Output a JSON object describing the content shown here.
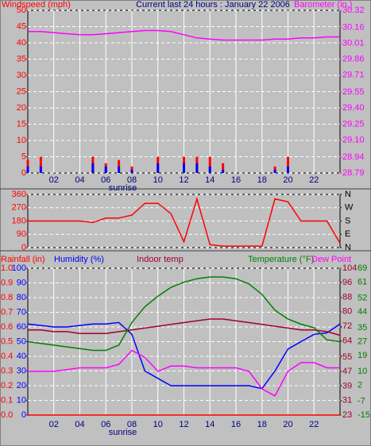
{
  "chart_data": [
    {
      "type": "combo",
      "title": "Current last 24 hours : January 22 2006",
      "ylabel": "Windspeed (mph)",
      "y2label": "Barometer (in.)",
      "x": [
        0,
        1,
        2,
        3,
        4,
        5,
        6,
        7,
        8,
        9,
        10,
        11,
        12,
        13,
        14,
        15,
        16,
        17,
        18,
        19,
        20,
        21,
        22,
        23,
        24
      ],
      "xlim": [
        0,
        24
      ],
      "xticks": [
        {
          "value": 2,
          "label": "02"
        },
        {
          "value": 4,
          "label": "04"
        },
        {
          "value": 6,
          "label": "06"
        },
        {
          "value": 8,
          "label": "08"
        },
        {
          "value": 10,
          "label": "10"
        },
        {
          "value": 12,
          "label": "12"
        },
        {
          "value": 14,
          "label": "14"
        },
        {
          "value": 16,
          "label": "16"
        },
        {
          "value": 18,
          "label": "18"
        },
        {
          "value": 20,
          "label": "20"
        },
        {
          "value": 22,
          "label": "22"
        }
      ],
      "ylim": [
        0,
        50
      ],
      "yticks": [
        0,
        5,
        10,
        15,
        20,
        25,
        30,
        35,
        40,
        45,
        50
      ],
      "y2lim": [
        28.79,
        30.32
      ],
      "y2ticks": [
        28.79,
        28.94,
        {
          "value": 29.1,
          "label": "29.10"
        },
        29.25,
        {
          "value": 29.4,
          "label": "29.40"
        },
        29.55,
        29.71,
        29.86,
        30.01,
        30.16,
        30.32
      ],
      "grid": true,
      "annotations": [
        {
          "text": "sunrise",
          "x": 7.3
        }
      ],
      "series": [
        {
          "type": "bar",
          "color": "#ff0000",
          "values": [
            4,
            5,
            0,
            0,
            0,
            5,
            3,
            4,
            2,
            0,
            5,
            0,
            5,
            5,
            5,
            3,
            0,
            0,
            0,
            2,
            5,
            0,
            0,
            0,
            0
          ]
        },
        {
          "type": "bar",
          "color": "#0000ff",
          "values": [
            2,
            2,
            0,
            0,
            0,
            3,
            2,
            2,
            1,
            0,
            3,
            0,
            3,
            3,
            2,
            1,
            0,
            0,
            0,
            1,
            2,
            0,
            0,
            0,
            0
          ]
        },
        {
          "type": "line",
          "axis": "y2",
          "color": "#ff00ff",
          "values": [
            30.12,
            30.12,
            30.11,
            30.1,
            30.09,
            30.09,
            30.1,
            30.11,
            30.12,
            30.13,
            30.13,
            30.12,
            30.09,
            30.06,
            30.05,
            30.04,
            30.04,
            30.04,
            30.04,
            30.05,
            30.05,
            30.06,
            30.06,
            30.07,
            30.07
          ]
        }
      ]
    },
    {
      "type": "combo",
      "x": [
        0,
        1,
        2,
        3,
        4,
        5,
        6,
        7,
        8,
        9,
        10,
        11,
        12,
        13,
        14,
        15,
        16,
        17,
        18,
        19,
        20,
        21,
        22,
        23,
        24
      ],
      "xlim": [
        0,
        24
      ],
      "ylim": [
        0,
        360
      ],
      "yticks": [
        0,
        90,
        180,
        270,
        360
      ],
      "y2lim": [
        0,
        360
      ],
      "y2ticks": [
        {
          "value": 0,
          "label": "N"
        },
        {
          "value": 90,
          "label": "E"
        },
        {
          "value": 180,
          "label": "S"
        },
        {
          "value": 270,
          "label": "W"
        },
        {
          "value": 360,
          "label": "N"
        }
      ],
      "grid": true,
      "series": [
        {
          "type": "line",
          "color": "#ff0000",
          "values": [
            180,
            180,
            180,
            180,
            180,
            170,
            200,
            200,
            220,
            300,
            300,
            230,
            40,
            330,
            20,
            10,
            10,
            10,
            10,
            330,
            310,
            180,
            180,
            180,
            30
          ]
        }
      ]
    },
    {
      "type": "combo",
      "x": [
        0,
        1,
        2,
        3,
        4,
        5,
        6,
        7,
        8,
        9,
        10,
        11,
        12,
        13,
        14,
        15,
        16,
        17,
        18,
        19,
        20,
        21,
        22,
        23,
        24
      ],
      "xlim": [
        0,
        24
      ],
      "xticks": [
        {
          "value": 2,
          "label": "02"
        },
        {
          "value": 4,
          "label": "04"
        },
        {
          "value": 6,
          "label": "06"
        },
        {
          "value": 8,
          "label": "08"
        },
        {
          "value": 10,
          "label": "10"
        },
        {
          "value": 12,
          "label": "12"
        },
        {
          "value": 14,
          "label": "14"
        },
        {
          "value": 16,
          "label": "16"
        },
        {
          "value": 18,
          "label": "18"
        },
        {
          "value": 20,
          "label": "20"
        },
        {
          "value": 22,
          "label": "22"
        }
      ],
      "ylim": [
        0,
        100
      ],
      "yticks": [
        0,
        10,
        20,
        30,
        40,
        50,
        60,
        70,
        80,
        90,
        100
      ],
      "y2lim": [
        23,
        104
      ],
      "y2ticks": [
        23,
        31,
        39,
        47,
        55,
        64,
        72,
        80,
        88,
        96,
        104
      ],
      "y3lim": [
        -15,
        69
      ],
      "y3ticks": [
        -15,
        -7,
        2,
        10,
        19,
        27,
        35,
        44,
        52,
        61,
        69
      ],
      "y4lim": [
        0,
        1
      ],
      "y4ticks": [
        {
          "value": 0,
          "label": "0.0"
        },
        0.1,
        0.2,
        0.3,
        0.4,
        0.5,
        0.6,
        0.7,
        0.8,
        0.9,
        {
          "value": 1,
          "label": "1.0"
        }
      ],
      "grid": true,
      "annotations": [
        {
          "text": "sunrise",
          "x": 7.3
        }
      ],
      "series": [
        {
          "name": "Rainfall (in)",
          "type": "line",
          "axis": "y4",
          "color": "#ff0000",
          "values": [
            0,
            0,
            0,
            0,
            0,
            0,
            0,
            0,
            0,
            0,
            0,
            0,
            0,
            0,
            0,
            0,
            0,
            0,
            0,
            0,
            0,
            0,
            0,
            0,
            0
          ]
        },
        {
          "name": "Humidity (%)",
          "type": "line",
          "color": "#0000ff",
          "values": [
            62,
            61,
            60,
            60,
            61,
            62,
            62,
            63,
            55,
            30,
            25,
            20,
            20,
            20,
            20,
            20,
            20,
            20,
            18,
            30,
            45,
            50,
            55,
            56,
            62
          ]
        },
        {
          "name": "Indoor temp",
          "type": "line",
          "axis": "y2",
          "color": "#a00030",
          "values": [
            70,
            70,
            69,
            69,
            68,
            68,
            68,
            69,
            70,
            71,
            72,
            73,
            74,
            75,
            76,
            76,
            75,
            74,
            73,
            72,
            71,
            70,
            70,
            69,
            67
          ]
        },
        {
          "name": "Temperature (°F)",
          "type": "line",
          "axis": "y3",
          "color": "#008000",
          "values": [
            27,
            26,
            25,
            24,
            23,
            22,
            22,
            25,
            38,
            47,
            53,
            58,
            61,
            63,
            64,
            64,
            63,
            60,
            54,
            45,
            40,
            37,
            35,
            28,
            27
          ]
        },
        {
          "name": "Dew Point",
          "type": "line",
          "axis": "y3",
          "color": "#ff00ff",
          "values": [
            10,
            10,
            10,
            11,
            12,
            12,
            12,
            14,
            22,
            18,
            10,
            13,
            13,
            12,
            12,
            12,
            12,
            10,
            0,
            -4,
            10,
            15,
            15,
            12,
            12
          ]
        }
      ]
    }
  ]
}
